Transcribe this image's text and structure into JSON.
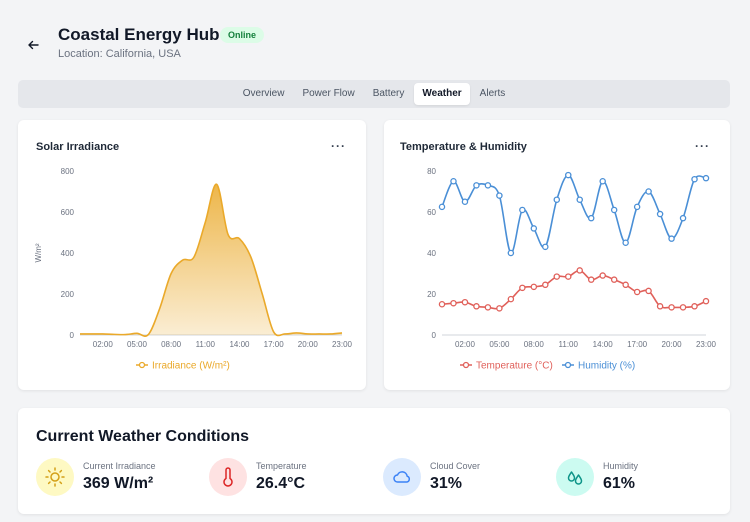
{
  "header": {
    "title": "Coastal Energy Hub",
    "status": "Online",
    "location": "Location: California, USA"
  },
  "tabs": [
    {
      "label": "Overview"
    },
    {
      "label": "Power Flow"
    },
    {
      "label": "Battery"
    },
    {
      "label": "Weather",
      "active": true
    },
    {
      "label": "Alerts"
    }
  ],
  "colors": {
    "irradiance": "#eaa92a",
    "temperature": "#e0605a",
    "humidity": "#4a8fd6"
  },
  "irradiance_card": {
    "title": "Solar Irradiance",
    "more": "···",
    "ylabel": "W/m²",
    "legend": "Irradiance (W/m²)"
  },
  "temphum_card": {
    "title": "Temperature & Humidity",
    "more": "···",
    "legend_temp": "Temperature (°C)",
    "legend_hum": "Humidity (%)"
  },
  "chart_data": [
    {
      "type": "area",
      "title": "Solar Irradiance",
      "ylabel": "W/m²",
      "ylim": [
        0,
        800
      ],
      "yticks": [
        0,
        200,
        400,
        600,
        800
      ],
      "xticks": [
        "02:00",
        "05:00",
        "08:00",
        "11:00",
        "14:00",
        "17:00",
        "20:00",
        "23:00"
      ],
      "x": [
        0,
        1,
        2,
        3,
        4,
        5,
        6,
        7,
        8,
        9,
        10,
        11,
        12,
        13,
        14,
        15,
        16,
        17,
        18,
        19,
        20,
        21,
        22,
        23
      ],
      "series": [
        {
          "name": "Irradiance (W/m²)",
          "values": [
            5,
            5,
            5,
            3,
            2,
            8,
            2,
            130,
            300,
            365,
            380,
            550,
            735,
            490,
            470,
            380,
            200,
            15,
            5,
            10,
            5,
            5,
            5,
            10
          ]
        }
      ],
      "grid": false,
      "legend": "bottom"
    },
    {
      "type": "line",
      "title": "Temperature & Humidity",
      "ylim": [
        0,
        80
      ],
      "yticks": [
        0,
        20,
        40,
        60,
        80
      ],
      "xticks": [
        "02:00",
        "05:00",
        "08:00",
        "11:00",
        "14:00",
        "17:00",
        "20:00",
        "23:00"
      ],
      "x": [
        0,
        1,
        2,
        3,
        4,
        5,
        6,
        7,
        8,
        9,
        10,
        11,
        12,
        13,
        14,
        15,
        16,
        17,
        18,
        19,
        20,
        21,
        22,
        23
      ],
      "series": [
        {
          "name": "Temperature (°C)",
          "values": [
            15,
            15.5,
            16,
            14,
            13.5,
            13,
            17.5,
            23,
            23.5,
            24.5,
            28.5,
            28.5,
            31.5,
            27,
            29,
            27,
            24.5,
            21,
            21.5,
            14,
            13.5,
            13.5,
            14,
            16.5
          ]
        },
        {
          "name": "Humidity (%)",
          "values": [
            62.5,
            75,
            65,
            73,
            73,
            68,
            40,
            61,
            52,
            43,
            66,
            78,
            66,
            57,
            75,
            61,
            45,
            62.5,
            70,
            59,
            47,
            57,
            76,
            76.5
          ]
        }
      ],
      "grid": false,
      "legend": "bottom"
    }
  ],
  "conditions": {
    "title": "Current Weather Conditions",
    "items": [
      {
        "label": "Current Irradiance",
        "value": "369 W/m²",
        "icon": "sun-icon"
      },
      {
        "label": "Temperature",
        "value": "26.4°C",
        "icon": "thermometer-icon"
      },
      {
        "label": "Cloud Cover",
        "value": "31%",
        "icon": "cloud-icon"
      },
      {
        "label": "Humidity",
        "value": "61%",
        "icon": "droplets-icon"
      }
    ]
  }
}
